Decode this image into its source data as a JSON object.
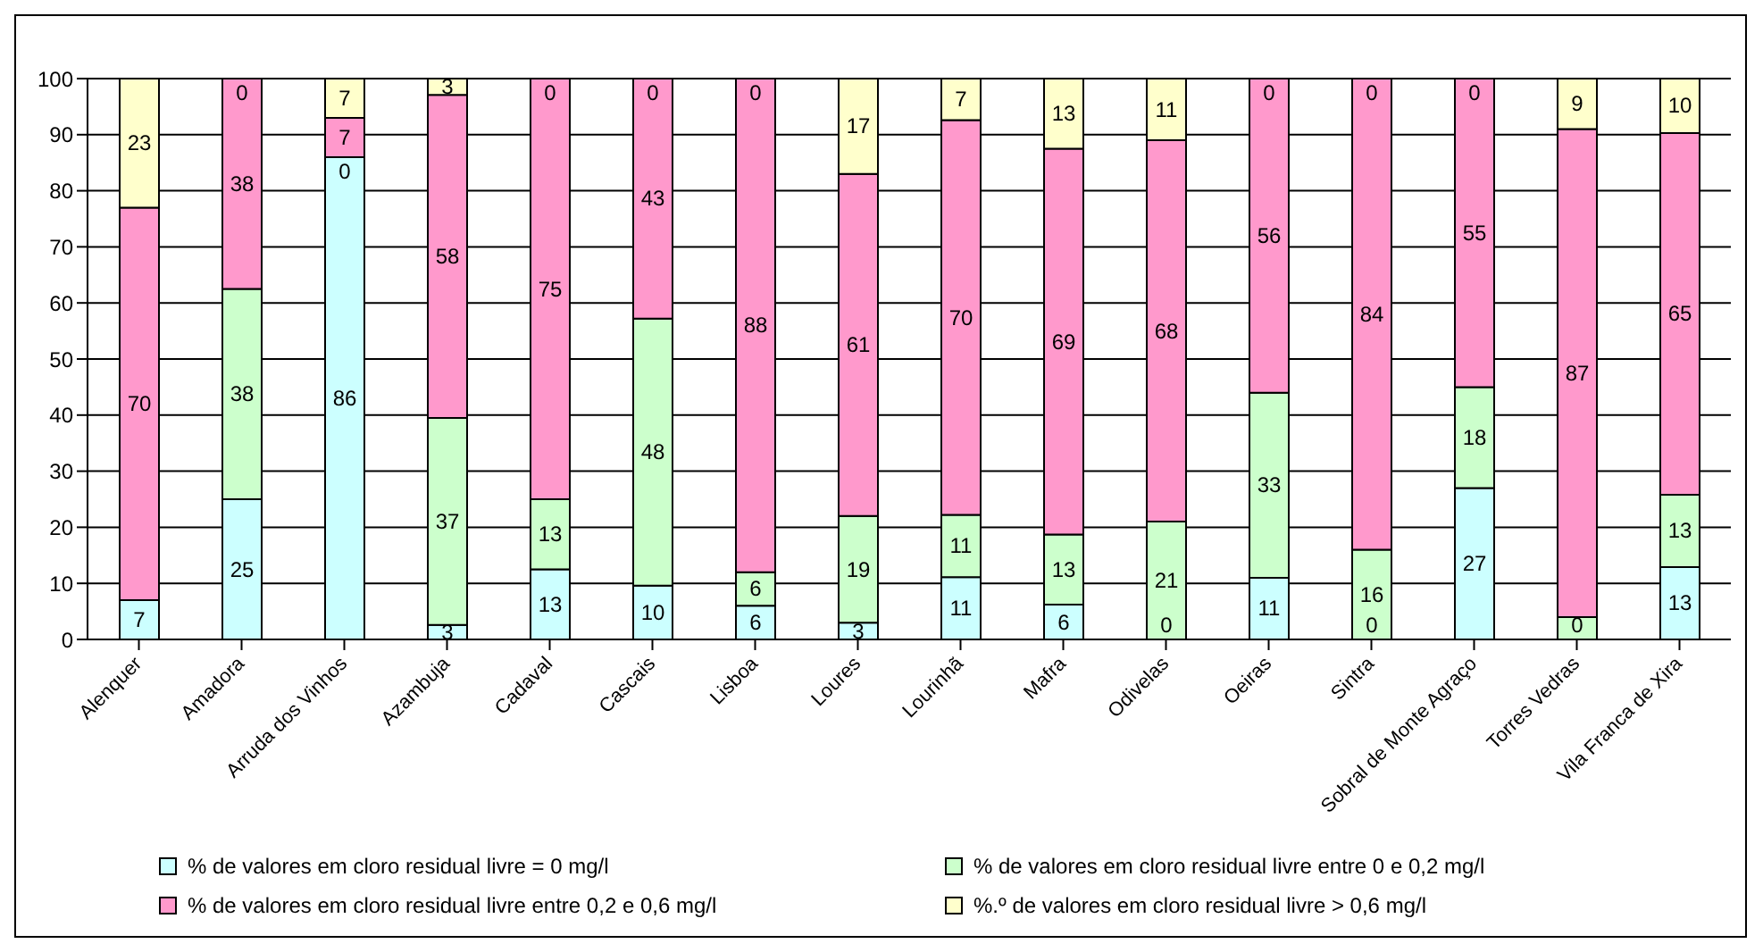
{
  "chart_data": {
    "type": "bar",
    "stacked": true,
    "categories": [
      "Alenquer",
      "Amadora",
      "Arruda dos Vinhos",
      "Azambuja",
      "Cadaval",
      "Cascais",
      "Lisboa",
      "Loures",
      "Lourinhã",
      "Mafra",
      "Odivelas",
      "Oeiras",
      "Sintra",
      "Sobral de Monte Agraço",
      "Torres Vedras",
      "Vila Franca de Xira"
    ],
    "series": [
      {
        "name": "% de valores em cloro residual livre = 0 mg/l",
        "color": "#ccffff",
        "values": [
          7,
          25,
          86,
          2.6,
          12.5,
          9.6,
          6,
          3,
          11.1,
          6.2,
          0,
          11,
          0,
          27,
          0,
          12.9
        ],
        "value_labels": [
          "7",
          "25",
          "86",
          "3",
          "13",
          "10",
          "6",
          "3",
          "11",
          "6",
          "0",
          "11",
          "0",
          "27",
          "0",
          "13"
        ]
      },
      {
        "name": "% de valores em cloro residual livre entre 0 e 0,2 mg/l",
        "color": "#ccffcc",
        "values": [
          0,
          37.5,
          0,
          36.9,
          12.5,
          47.6,
          6,
          19,
          11.1,
          12.5,
          21,
          33,
          16,
          18,
          4,
          12.9
        ],
        "value_labels": [
          null,
          "38",
          "0",
          "37",
          "13",
          "48",
          "6",
          "19",
          "11",
          "13",
          "21",
          "33",
          "16",
          "18",
          null,
          "13"
        ]
      },
      {
        "name": "% de valores em cloro residual livre entre 0,2 e 0,6 mg/l",
        "color": "#ff99cc",
        "values": [
          70,
          37.5,
          7,
          57.6,
          75,
          42.8,
          88,
          61,
          70.4,
          68.8,
          68,
          56,
          84,
          55,
          87,
          64.5
        ],
        "value_labels": [
          "70",
          "38",
          "7",
          "58",
          "75",
          "43",
          "88",
          "61",
          "70",
          "69",
          "68",
          "56",
          "84",
          "55",
          "87",
          "65"
        ]
      },
      {
        "name": "%.º de valores em cloro residual livre > 0,6 mg/l",
        "color": "#ffffcc",
        "values": [
          23,
          0,
          7,
          2.9,
          0,
          0,
          0,
          17,
          7.4,
          12.5,
          11,
          0,
          0,
          0,
          9,
          9.7
        ],
        "value_labels": [
          "23",
          "0",
          "7",
          "3",
          "0",
          "0",
          "0",
          "17",
          "7",
          "13",
          "11",
          "0",
          "0",
          "0",
          "9",
          "10"
        ]
      }
    ],
    "ylim": [
      0,
      100
    ],
    "yticks": [
      0,
      10,
      20,
      30,
      40,
      50,
      60,
      70,
      80,
      90,
      100
    ],
    "grid": "y",
    "legend": "bottom"
  }
}
